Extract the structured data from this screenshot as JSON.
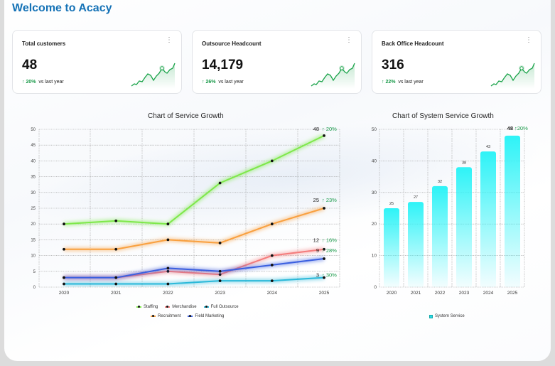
{
  "header": {
    "title": "Welcome to Acacy"
  },
  "cards": [
    {
      "label": "Total customers",
      "value": "48",
      "delta_pct": "20%",
      "delta_text": "vs last year",
      "menu_icon": "kebab-icon"
    },
    {
      "label": "Outsource Headcount",
      "value": "14,179",
      "delta_pct": "26%",
      "delta_text": "vs last year",
      "menu_icon": "kebab-icon"
    },
    {
      "label": "Back Office Headcount",
      "value": "316",
      "delta_pct": "22%",
      "delta_text": "vs last year",
      "menu_icon": "kebab-icon"
    }
  ],
  "colors": {
    "accent": "#1572b6",
    "positive": "#1a9a4a",
    "spark": "#1aa34a"
  },
  "chart_data": [
    {
      "type": "line",
      "title": "Chart of Service Growth",
      "categories": [
        "2020",
        "2021",
        "2022",
        "2023",
        "2024",
        "2025"
      ],
      "ylim": [
        0,
        50
      ],
      "yticks": [
        0,
        5,
        10,
        15,
        20,
        25,
        30,
        35,
        40,
        45,
        50
      ],
      "grid": true,
      "legend": "bottom",
      "series": [
        {
          "name": "Staffing",
          "color": "#7ee84a",
          "values": [
            20,
            21,
            20,
            33,
            40,
            48
          ],
          "end_label": "48",
          "growth": "20%"
        },
        {
          "name": "Merchandise",
          "color": "#f47c7c",
          "values": [
            3,
            3,
            5,
            4,
            10,
            12
          ],
          "end_label": "12",
          "growth": "16%"
        },
        {
          "name": "Full Outsource",
          "color": "#2bb9d9",
          "values": [
            1,
            1,
            1,
            2,
            2,
            3
          ],
          "end_label": "3",
          "growth": "30%"
        },
        {
          "name": "Recruitment",
          "color": "#f9a03f",
          "values": [
            12,
            12,
            15,
            14,
            20,
            25
          ],
          "end_label": "25",
          "growth": "23%"
        },
        {
          "name": "Field Marketing",
          "color": "#3a5fe0",
          "values": [
            3,
            3,
            6,
            5,
            7,
            9
          ],
          "end_label": "9",
          "growth": "28%"
        }
      ]
    },
    {
      "type": "bar",
      "title": "Chart of System Service Growth",
      "categories": [
        "2020",
        "2021",
        "2022",
        "2023",
        "2024",
        "2025"
      ],
      "values": [
        25,
        27,
        32,
        38,
        43,
        48
      ],
      "ylim": [
        0,
        50
      ],
      "yticks": [
        0,
        10,
        20,
        30,
        40,
        50
      ],
      "grid": true,
      "legend": "bottom",
      "series_name": "System Service",
      "color": "#2ef3f7",
      "top_label": "48",
      "growth": "20%"
    }
  ]
}
